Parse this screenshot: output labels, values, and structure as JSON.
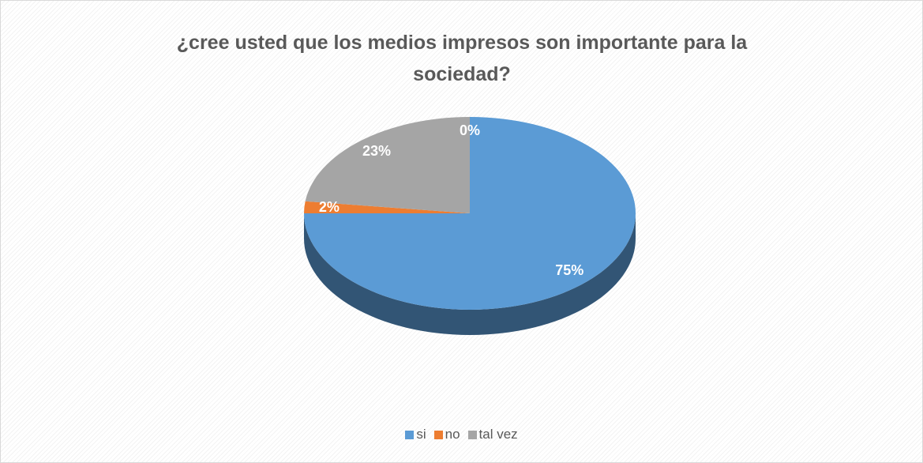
{
  "chart_data": {
    "type": "pie",
    "title": "¿cree usted que los medios impresos son importante para la sociedad?",
    "categories": [
      "si",
      "no",
      "tal vez",
      null
    ],
    "values": [
      75,
      2,
      23,
      0
    ],
    "value_labels": [
      "75%",
      "2%",
      "23%",
      "0%"
    ],
    "colors": [
      "#5b9bd5",
      "#ed7d31",
      "#a5a5a5",
      "#ffc000"
    ],
    "legend": "bottom"
  }
}
